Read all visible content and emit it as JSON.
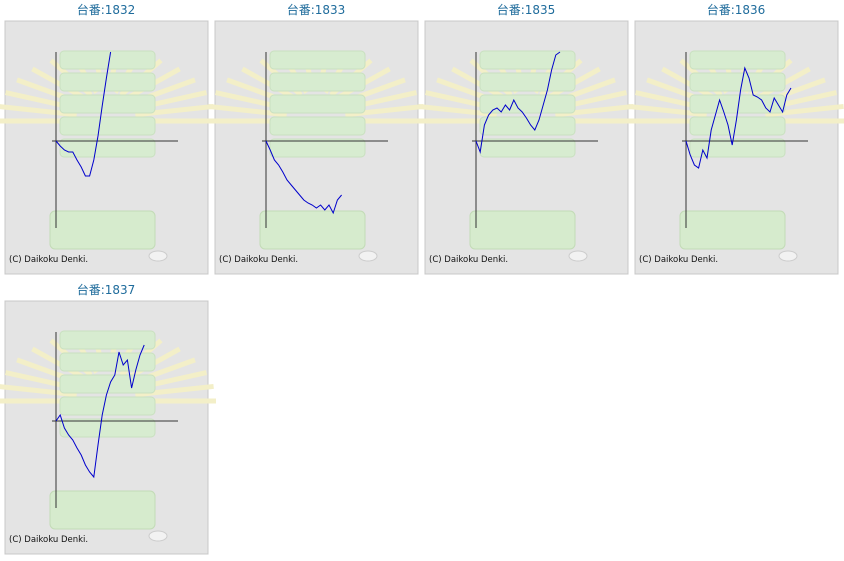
{
  "chart_data": [
    {
      "type": "line",
      "title": "台番:1832",
      "annotation": "(C) Daikoku Denki.",
      "color": "#0000cc",
      "xlim": [
        0,
        30
      ],
      "ylim": [
        -87,
        89
      ],
      "values": [
        0,
        -5,
        -9,
        -11,
        -11,
        -19,
        -26,
        -35,
        -35,
        -19,
        5,
        35,
        63,
        89
      ]
    },
    {
      "type": "line",
      "title": "台番:1833",
      "annotation": "(C) Daikoku Denki.",
      "color": "#0000cc",
      "xlim": [
        0,
        30
      ],
      "ylim": [
        -87,
        89
      ],
      "values": [
        0,
        -9,
        -19,
        -24,
        -31,
        -39,
        -44,
        -49,
        -54,
        -59,
        -62,
        -64,
        -67,
        -64,
        -69,
        -64,
        -72,
        -59,
        -54
      ]
    },
    {
      "type": "line",
      "title": "台番:1835",
      "annotation": "(C) Daikoku Denki.",
      "color": "#0000cc",
      "xlim": [
        0,
        30
      ],
      "ylim": [
        -87,
        89
      ],
      "values": [
        0,
        -11,
        16,
        26,
        31,
        33,
        29,
        36,
        31,
        41,
        33,
        29,
        23,
        16,
        11,
        21,
        36,
        51,
        71,
        86,
        89
      ]
    },
    {
      "type": "line",
      "title": "台番:1836",
      "annotation": "(C) Daikoku Denki.",
      "color": "#0000cc",
      "xlim": [
        0,
        30
      ],
      "ylim": [
        -87,
        89
      ],
      "values": [
        0,
        -14,
        -24,
        -27,
        -9,
        -17,
        11,
        26,
        41,
        29,
        16,
        -4,
        21,
        51,
        73,
        63,
        46,
        44,
        41,
        33,
        29,
        43,
        36,
        29,
        46,
        53
      ]
    },
    {
      "type": "line",
      "title": "台番:1837",
      "annotation": "(C) Daikoku Denki.",
      "color": "#0000cc",
      "xlim": [
        0,
        30
      ],
      "ylim": [
        -87,
        89
      ],
      "values": [
        0,
        6,
        -7,
        -14,
        -19,
        -27,
        -34,
        -44,
        -51,
        -56,
        -24,
        6,
        26,
        39,
        46,
        69,
        56,
        61,
        33,
        51,
        66,
        76
      ]
    }
  ]
}
